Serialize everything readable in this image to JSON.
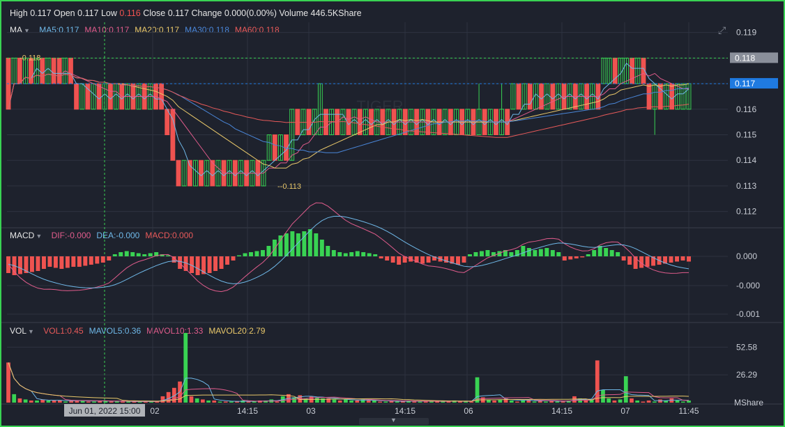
{
  "header": {
    "high_label": "High",
    "high": "0.117",
    "open_label": "Open",
    "open": "0.117",
    "low_label": "Low",
    "low": "0.116",
    "close_label": "Close",
    "close": "0.117",
    "change_label": "Change",
    "change": "0.000(0.00%)",
    "volume_label": "Volume",
    "volume": "446.5KShare"
  },
  "ma_legend": {
    "name": "MA",
    "items": [
      {
        "label": "MA5:0.117",
        "color": "#6fb8e8"
      },
      {
        "label": "MA10:0.117",
        "color": "#e05c8c"
      },
      {
        "label": "MA20:0.117",
        "color": "#e9c86a"
      },
      {
        "label": "MA30:0.118",
        "color": "#4a86d8"
      },
      {
        "label": "MA60:0.118",
        "color": "#e85a5a"
      }
    ]
  },
  "macd_legend": {
    "name": "MACD",
    "items": [
      {
        "label": "DIF:-0.000",
        "color": "#e05c8c"
      },
      {
        "label": "DEA:-0.000",
        "color": "#6fb8e8"
      },
      {
        "label": "MACD:0.000",
        "color": "#e85a5a"
      }
    ]
  },
  "vol_legend": {
    "name": "VOL",
    "items": [
      {
        "label": "VOL1:0.45",
        "color": "#e85a5a"
      },
      {
        "label": "MAVOL5:0.36",
        "color": "#6fb8e8"
      },
      {
        "label": "MAVOL10:1.33",
        "color": "#e05c8c"
      },
      {
        "label": "MAVOL20:2.79",
        "color": "#e9c86a"
      }
    ]
  },
  "colors": {
    "up": "#39d353",
    "down": "#ef5350",
    "grid": "#2e3340",
    "axis_text": "#c8ccd4",
    "last_price_bg": "#1f7ae0",
    "ref_price_bg": "#8a8f9a"
  },
  "chart_data": [
    {
      "type": "candlestick",
      "title": "",
      "y_ticks": [
        "0.119",
        "0.118",
        "0.117",
        "0.116",
        "0.115",
        "0.114",
        "0.113",
        "0.112"
      ],
      "ylim": [
        0.1115,
        0.1194
      ],
      "price_tags": {
        "ref": "0.118",
        "last": "0.117"
      },
      "annotations": {
        "high_mark": "0.118",
        "low_mark": "0.113"
      },
      "x_ticks": [
        "02",
        "14:15",
        "03",
        "14:15",
        "06",
        "14:15",
        "07",
        "11:45"
      ],
      "crosshair_label": "Jun 01, 2022 15:00",
      "candles": [
        {
          "o": 0.118,
          "c": 0.116,
          "h": 0.118,
          "l": 0.116
        },
        {
          "o": 0.117,
          "c": 0.118,
          "h": 0.118,
          "l": 0.117
        },
        {
          "o": 0.118,
          "c": 0.117,
          "h": 0.118,
          "l": 0.117
        },
        {
          "o": 0.117,
          "c": 0.118,
          "h": 0.118,
          "l": 0.117
        },
        {
          "o": 0.118,
          "c": 0.117,
          "h": 0.118,
          "l": 0.117
        },
        {
          "o": 0.117,
          "c": 0.118,
          "h": 0.118,
          "l": 0.117
        },
        {
          "o": 0.118,
          "c": 0.117,
          "h": 0.118,
          "l": 0.117
        },
        {
          "o": 0.117,
          "c": 0.118,
          "h": 0.118,
          "l": 0.117
        },
        {
          "o": 0.118,
          "c": 0.117,
          "h": 0.118,
          "l": 0.117
        },
        {
          "o": 0.118,
          "c": 0.117,
          "h": 0.118,
          "l": 0.117
        },
        {
          "o": 0.117,
          "c": 0.118,
          "h": 0.118,
          "l": 0.117
        },
        {
          "o": 0.118,
          "c": 0.117,
          "h": 0.118,
          "l": 0.117
        },
        {
          "o": 0.117,
          "c": 0.116,
          "h": 0.117,
          "l": 0.116
        },
        {
          "o": 0.116,
          "c": 0.117,
          "h": 0.117,
          "l": 0.116
        },
        {
          "o": 0.117,
          "c": 0.116,
          "h": 0.117,
          "l": 0.116
        },
        {
          "o": 0.116,
          "c": 0.117,
          "h": 0.117,
          "l": 0.116
        },
        {
          "o": 0.117,
          "c": 0.116,
          "h": 0.117,
          "l": 0.116
        },
        {
          "o": 0.116,
          "c": 0.117,
          "h": 0.117,
          "l": 0.116
        },
        {
          "o": 0.117,
          "c": 0.116,
          "h": 0.117,
          "l": 0.116
        },
        {
          "o": 0.116,
          "c": 0.117,
          "h": 0.117,
          "l": 0.116
        },
        {
          "o": 0.117,
          "c": 0.116,
          "h": 0.117,
          "l": 0.116
        },
        {
          "o": 0.116,
          "c": 0.117,
          "h": 0.117,
          "l": 0.116
        },
        {
          "o": 0.117,
          "c": 0.116,
          "h": 0.117,
          "l": 0.116
        },
        {
          "o": 0.116,
          "c": 0.117,
          "h": 0.117,
          "l": 0.116
        },
        {
          "o": 0.117,
          "c": 0.116,
          "h": 0.117,
          "l": 0.116
        },
        {
          "o": 0.116,
          "c": 0.117,
          "h": 0.117,
          "l": 0.116
        },
        {
          "o": 0.117,
          "c": 0.116,
          "h": 0.117,
          "l": 0.116
        },
        {
          "o": 0.117,
          "c": 0.116,
          "h": 0.117,
          "l": 0.116
        },
        {
          "o": 0.116,
          "c": 0.115,
          "h": 0.116,
          "l": 0.115
        },
        {
          "o": 0.116,
          "c": 0.114,
          "h": 0.116,
          "l": 0.114
        },
        {
          "o": 0.114,
          "c": 0.113,
          "h": 0.114,
          "l": 0.113
        },
        {
          "o": 0.113,
          "c": 0.114,
          "h": 0.114,
          "l": 0.113
        },
        {
          "o": 0.114,
          "c": 0.113,
          "h": 0.114,
          "l": 0.113
        },
        {
          "o": 0.113,
          "c": 0.114,
          "h": 0.114,
          "l": 0.113
        },
        {
          "o": 0.114,
          "c": 0.113,
          "h": 0.114,
          "l": 0.113
        },
        {
          "o": 0.113,
          "c": 0.114,
          "h": 0.114,
          "l": 0.113
        },
        {
          "o": 0.114,
          "c": 0.113,
          "h": 0.114,
          "l": 0.113
        },
        {
          "o": 0.113,
          "c": 0.114,
          "h": 0.114,
          "l": 0.113
        },
        {
          "o": 0.114,
          "c": 0.113,
          "h": 0.114,
          "l": 0.113
        },
        {
          "o": 0.113,
          "c": 0.114,
          "h": 0.114,
          "l": 0.113
        },
        {
          "o": 0.114,
          "c": 0.113,
          "h": 0.114,
          "l": 0.113
        },
        {
          "o": 0.113,
          "c": 0.114,
          "h": 0.114,
          "l": 0.113
        },
        {
          "o": 0.114,
          "c": 0.113,
          "h": 0.114,
          "l": 0.113
        },
        {
          "o": 0.113,
          "c": 0.114,
          "h": 0.114,
          "l": 0.113
        },
        {
          "o": 0.114,
          "c": 0.113,
          "h": 0.114,
          "l": 0.113
        },
        {
          "o": 0.113,
          "c": 0.114,
          "h": 0.114,
          "l": 0.113
        },
        {
          "o": 0.114,
          "c": 0.115,
          "h": 0.115,
          "l": 0.114
        },
        {
          "o": 0.115,
          "c": 0.114,
          "h": 0.115,
          "l": 0.114
        },
        {
          "o": 0.114,
          "c": 0.115,
          "h": 0.115,
          "l": 0.114
        },
        {
          "o": 0.115,
          "c": 0.114,
          "h": 0.115,
          "l": 0.114
        },
        {
          "o": 0.114,
          "c": 0.116,
          "h": 0.116,
          "l": 0.114
        },
        {
          "o": 0.116,
          "c": 0.115,
          "h": 0.116,
          "l": 0.115
        },
        {
          "o": 0.115,
          "c": 0.116,
          "h": 0.116,
          "l": 0.115
        },
        {
          "o": 0.116,
          "c": 0.115,
          "h": 0.116,
          "l": 0.115
        },
        {
          "o": 0.115,
          "c": 0.116,
          "h": 0.116,
          "l": 0.115
        },
        {
          "o": 0.115,
          "c": 0.117,
          "h": 0.117,
          "l": 0.115
        },
        {
          "o": 0.116,
          "c": 0.115,
          "h": 0.116,
          "l": 0.115
        },
        {
          "o": 0.115,
          "c": 0.116,
          "h": 0.116,
          "l": 0.115
        },
        {
          "o": 0.116,
          "c": 0.115,
          "h": 0.116,
          "l": 0.115
        },
        {
          "o": 0.115,
          "c": 0.116,
          "h": 0.116,
          "l": 0.115
        },
        {
          "o": 0.116,
          "c": 0.115,
          "h": 0.116,
          "l": 0.115
        },
        {
          "o": 0.115,
          "c": 0.116,
          "h": 0.116,
          "l": 0.115
        },
        {
          "o": 0.116,
          "c": 0.115,
          "h": 0.116,
          "l": 0.115
        },
        {
          "o": 0.115,
          "c": 0.116,
          "h": 0.116,
          "l": 0.115
        },
        {
          "o": 0.116,
          "c": 0.115,
          "h": 0.116,
          "l": 0.115
        },
        {
          "o": 0.115,
          "c": 0.116,
          "h": 0.116,
          "l": 0.115
        },
        {
          "o": 0.116,
          "c": 0.115,
          "h": 0.116,
          "l": 0.115
        },
        {
          "o": 0.115,
          "c": 0.116,
          "h": 0.116,
          "l": 0.115
        },
        {
          "o": 0.116,
          "c": 0.115,
          "h": 0.116,
          "l": 0.115
        },
        {
          "o": 0.115,
          "c": 0.116,
          "h": 0.116,
          "l": 0.115
        },
        {
          "o": 0.116,
          "c": 0.115,
          "h": 0.116,
          "l": 0.115
        },
        {
          "o": 0.115,
          "c": 0.116,
          "h": 0.116,
          "l": 0.115
        },
        {
          "o": 0.116,
          "c": 0.115,
          "h": 0.116,
          "l": 0.115
        },
        {
          "o": 0.115,
          "c": 0.116,
          "h": 0.116,
          "l": 0.115
        },
        {
          "o": 0.116,
          "c": 0.115,
          "h": 0.116,
          "l": 0.115
        },
        {
          "o": 0.115,
          "c": 0.116,
          "h": 0.116,
          "l": 0.115
        },
        {
          "o": 0.116,
          "c": 0.115,
          "h": 0.116,
          "l": 0.115
        },
        {
          "o": 0.115,
          "c": 0.116,
          "h": 0.116,
          "l": 0.115
        },
        {
          "o": 0.116,
          "c": 0.115,
          "h": 0.116,
          "l": 0.115
        },
        {
          "o": 0.115,
          "c": 0.116,
          "h": 0.116,
          "l": 0.115
        },
        {
          "o": 0.116,
          "c": 0.115,
          "h": 0.116,
          "l": 0.115
        },
        {
          "o": 0.115,
          "c": 0.116,
          "h": 0.116,
          "l": 0.115
        },
        {
          "o": 0.116,
          "c": 0.115,
          "h": 0.116,
          "l": 0.115
        },
        {
          "o": 0.115,
          "c": 0.116,
          "h": 0.117,
          "l": 0.115
        },
        {
          "o": 0.116,
          "c": 0.115,
          "h": 0.116,
          "l": 0.115
        },
        {
          "o": 0.115,
          "c": 0.116,
          "h": 0.116,
          "l": 0.115
        },
        {
          "o": 0.116,
          "c": 0.115,
          "h": 0.116,
          "l": 0.115
        },
        {
          "o": 0.115,
          "c": 0.116,
          "h": 0.117,
          "l": 0.115
        },
        {
          "o": 0.116,
          "c": 0.115,
          "h": 0.116,
          "l": 0.115
        },
        {
          "o": 0.116,
          "c": 0.117,
          "h": 0.117,
          "l": 0.116
        },
        {
          "o": 0.117,
          "c": 0.116,
          "h": 0.117,
          "l": 0.116
        },
        {
          "o": 0.116,
          "c": 0.117,
          "h": 0.117,
          "l": 0.116
        },
        {
          "o": 0.117,
          "c": 0.116,
          "h": 0.117,
          "l": 0.116
        },
        {
          "o": 0.116,
          "c": 0.117,
          "h": 0.117,
          "l": 0.116
        },
        {
          "o": 0.117,
          "c": 0.116,
          "h": 0.117,
          "l": 0.116
        },
        {
          "o": 0.116,
          "c": 0.117,
          "h": 0.117,
          "l": 0.116
        },
        {
          "o": 0.117,
          "c": 0.116,
          "h": 0.117,
          "l": 0.116
        },
        {
          "o": 0.116,
          "c": 0.117,
          "h": 0.117,
          "l": 0.116
        },
        {
          "o": 0.117,
          "c": 0.116,
          "h": 0.117,
          "l": 0.116
        },
        {
          "o": 0.116,
          "c": 0.117,
          "h": 0.117,
          "l": 0.116
        },
        {
          "o": 0.117,
          "c": 0.116,
          "h": 0.117,
          "l": 0.116
        },
        {
          "o": 0.116,
          "c": 0.117,
          "h": 0.117,
          "l": 0.116
        },
        {
          "o": 0.117,
          "c": 0.116,
          "h": 0.117,
          "l": 0.116
        },
        {
          "o": 0.116,
          "c": 0.117,
          "h": 0.117,
          "l": 0.116
        },
        {
          "o": 0.117,
          "c": 0.116,
          "h": 0.117,
          "l": 0.116
        },
        {
          "o": 0.117,
          "c": 0.118,
          "h": 0.118,
          "l": 0.117
        },
        {
          "o": 0.117,
          "c": 0.118,
          "h": 0.118,
          "l": 0.117
        },
        {
          "o": 0.118,
          "c": 0.117,
          "h": 0.118,
          "l": 0.117
        },
        {
          "o": 0.117,
          "c": 0.118,
          "h": 0.118,
          "l": 0.117
        },
        {
          "o": 0.117,
          "c": 0.118,
          "h": 0.118,
          "l": 0.117
        },
        {
          "o": 0.118,
          "c": 0.117,
          "h": 0.118,
          "l": 0.117
        },
        {
          "o": 0.117,
          "c": 0.118,
          "h": 0.118,
          "l": 0.117
        },
        {
          "o": 0.118,
          "c": 0.117,
          "h": 0.118,
          "l": 0.117
        },
        {
          "o": 0.117,
          "c": 0.116,
          "h": 0.117,
          "l": 0.116
        },
        {
          "o": 0.116,
          "c": 0.117,
          "h": 0.117,
          "l": 0.115
        },
        {
          "o": 0.117,
          "c": 0.116,
          "h": 0.117,
          "l": 0.116
        },
        {
          "o": 0.116,
          "c": 0.117,
          "h": 0.117,
          "l": 0.116
        },
        {
          "o": 0.117,
          "c": 0.116,
          "h": 0.117,
          "l": 0.116
        },
        {
          "o": 0.116,
          "c": 0.117,
          "h": 0.117,
          "l": 0.116
        },
        {
          "o": 0.116,
          "c": 0.117,
          "h": 0.117,
          "l": 0.116
        },
        {
          "o": 0.116,
          "c": 0.117,
          "h": 0.117,
          "l": 0.116
        }
      ]
    },
    {
      "type": "bar",
      "title": "",
      "y_ticks": [
        "0.000",
        "-0.000",
        "-0.001"
      ],
      "values": [
        -0.8,
        -0.9,
        -0.85,
        -0.8,
        -0.75,
        -0.7,
        -0.6,
        -0.5,
        -0.55,
        -0.6,
        -0.55,
        -0.5,
        -0.5,
        -0.45,
        -0.4,
        -0.35,
        -0.3,
        -0.2,
        0.1,
        0.2,
        0.25,
        0.2,
        0.15,
        0.1,
        0.15,
        0.2,
        0.1,
        0.05,
        -0.3,
        -0.6,
        -0.7,
        -0.8,
        -0.9,
        -0.85,
        -0.8,
        -0.7,
        -0.6,
        -0.4,
        -0.2,
        0.05,
        0.15,
        0.2,
        0.25,
        0.3,
        0.5,
        0.8,
        1.0,
        1.1,
        1.2,
        1.1,
        1.2,
        1.3,
        1.1,
        0.8,
        0.5,
        0.3,
        0.2,
        0.15,
        0.2,
        0.25,
        0.2,
        0.15,
        0.1,
        -0.1,
        -0.2,
        -0.3,
        -0.4,
        -0.3,
        -0.25,
        -0.3,
        -0.35,
        -0.3,
        -0.2,
        -0.25,
        -0.3,
        -0.35,
        -0.4,
        -0.3,
        0.1,
        0.2,
        0.25,
        0.3,
        0.2,
        0.25,
        0.3,
        0.2,
        0.3,
        0.5,
        0.4,
        0.3,
        0.35,
        0.4,
        0.3,
        0.2,
        -0.2,
        -0.15,
        -0.1,
        -0.05,
        0.1,
        0.3,
        0.5,
        0.4,
        0.3,
        0.2,
        -0.2,
        -0.4,
        -0.6,
        -0.55,
        -0.5,
        -0.45,
        -0.4,
        -0.35,
        -0.3,
        -0.25,
        -0.2,
        -0.25
      ]
    },
    {
      "type": "bar",
      "title": "",
      "y_ticks": [
        "52.58",
        "26.29",
        "MShare"
      ],
      "values": [
        38,
        8,
        4,
        3,
        2,
        2,
        3,
        2,
        2,
        2,
        1,
        2,
        2,
        2,
        1,
        1,
        2,
        2,
        1,
        1,
        1,
        1,
        1,
        1,
        1,
        1,
        1,
        6,
        10,
        14,
        20,
        66,
        6,
        4,
        3,
        2,
        2,
        1,
        1,
        1,
        1,
        2,
        1,
        1,
        2,
        2,
        3,
        1,
        6,
        8,
        5,
        7,
        4,
        6,
        5,
        4,
        4,
        3,
        2,
        3,
        2,
        2,
        3,
        2,
        2,
        1,
        1,
        2,
        1,
        1,
        2,
        1,
        1,
        1,
        2,
        1,
        1,
        1,
        2,
        1,
        1,
        1,
        24,
        5,
        3,
        2,
        3,
        4,
        2,
        1,
        2,
        3,
        1,
        2,
        1,
        2,
        1,
        1,
        2,
        6,
        4,
        2,
        3,
        40,
        12,
        4,
        2,
        3,
        25,
        4,
        2,
        1,
        2,
        1,
        3,
        2,
        4,
        2,
        1,
        2
      ]
    }
  ]
}
